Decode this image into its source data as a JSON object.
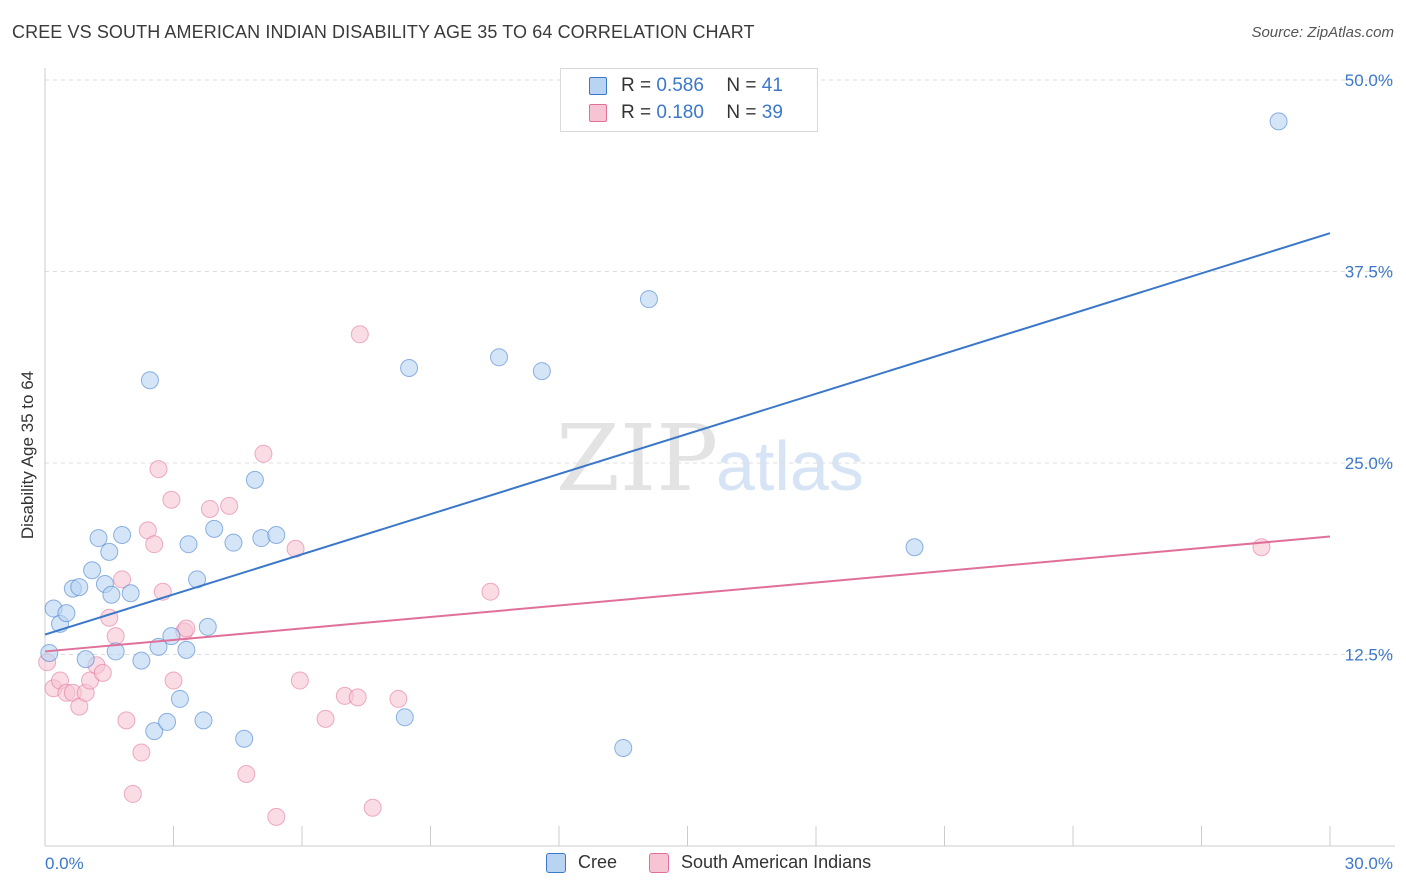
{
  "title": "CREE VS SOUTH AMERICAN INDIAN DISABILITY AGE 35 TO 64 CORRELATION CHART",
  "source": "Source: ZipAtlas.com",
  "watermark": {
    "zip": "ZIP",
    "atlas": "atlas"
  },
  "colors": {
    "blue": "#3b78c9",
    "blue_fill": "#b9d3f3",
    "pink": "#e0709a",
    "pink_fill": "#f7c4d4",
    "grid": "#dddddd"
  },
  "legend": {
    "rows": [
      {
        "r_label": "R =",
        "r_value": "0.586",
        "n_label": "N =",
        "n_value": "41"
      },
      {
        "r_label": "R =",
        "r_value": "0.180",
        "n_label": "N =",
        "n_value": "39"
      }
    ]
  },
  "bottom_legend": {
    "series1": "Cree",
    "series2": "South American Indians"
  },
  "chart_data": {
    "type": "scatter",
    "title": "CREE VS SOUTH AMERICAN INDIAN DISABILITY AGE 35 TO 64 CORRELATION CHART",
    "xlabel": "",
    "ylabel": "Disability Age 35 to 64",
    "xlim": [
      0,
      30
    ],
    "ylim": [
      0,
      50
    ],
    "x_tick_labels": [
      "0.0%",
      "30.0%"
    ],
    "y_ticks": [
      12.5,
      25.0,
      37.5,
      50.0
    ],
    "y_tick_labels": [
      "12.5%",
      "25.0%",
      "37.5%",
      "50.0%"
    ],
    "grid": true,
    "legend_position": "top-center",
    "series": [
      {
        "name": "Cree",
        "color": "#3b78c9",
        "r": 0.586,
        "n": 41,
        "trend": {
          "x": [
            0,
            30
          ],
          "y": [
            13.8,
            40.0
          ]
        },
        "points": [
          [
            0.1,
            12.6
          ],
          [
            0.2,
            15.5
          ],
          [
            0.35,
            14.5
          ],
          [
            0.5,
            15.2
          ],
          [
            0.65,
            16.8
          ],
          [
            0.8,
            16.9
          ],
          [
            0.95,
            12.2
          ],
          [
            1.1,
            18.0
          ],
          [
            1.25,
            20.1
          ],
          [
            1.4,
            17.1
          ],
          [
            1.5,
            19.2
          ],
          [
            1.55,
            16.4
          ],
          [
            1.65,
            12.7
          ],
          [
            1.8,
            20.3
          ],
          [
            2.0,
            16.5
          ],
          [
            2.25,
            12.1
          ],
          [
            2.45,
            30.4
          ],
          [
            2.55,
            7.5
          ],
          [
            2.65,
            13.0
          ],
          [
            2.85,
            8.1
          ],
          [
            2.95,
            13.7
          ],
          [
            3.15,
            9.6
          ],
          [
            3.3,
            12.8
          ],
          [
            3.35,
            19.7
          ],
          [
            3.55,
            17.4
          ],
          [
            3.7,
            8.2
          ],
          [
            3.8,
            14.3
          ],
          [
            3.95,
            20.7
          ],
          [
            4.4,
            19.8
          ],
          [
            4.65,
            7.0
          ],
          [
            4.9,
            23.9
          ],
          [
            5.05,
            20.1
          ],
          [
            5.4,
            20.3
          ],
          [
            8.4,
            8.4
          ],
          [
            8.5,
            31.2
          ],
          [
            10.6,
            31.9
          ],
          [
            11.6,
            31.0
          ],
          [
            13.5,
            6.4
          ],
          [
            14.1,
            35.7
          ],
          [
            20.3,
            19.5
          ],
          [
            28.8,
            47.3
          ]
        ]
      },
      {
        "name": "South American Indians",
        "color": "#e0709a",
        "r": 0.18,
        "n": 39,
        "trend": {
          "x": [
            0,
            30
          ],
          "y": [
            12.7,
            20.2
          ]
        },
        "points": [
          [
            0.05,
            12.0
          ],
          [
            0.2,
            10.3
          ],
          [
            0.35,
            10.8
          ],
          [
            0.5,
            10.0
          ],
          [
            0.65,
            10.0
          ],
          [
            0.8,
            9.1
          ],
          [
            0.95,
            10.0
          ],
          [
            1.05,
            10.8
          ],
          [
            1.2,
            11.8
          ],
          [
            1.35,
            11.3
          ],
          [
            1.5,
            14.9
          ],
          [
            1.65,
            13.7
          ],
          [
            1.8,
            17.4
          ],
          [
            1.9,
            8.2
          ],
          [
            2.05,
            3.4
          ],
          [
            2.25,
            6.1
          ],
          [
            2.4,
            20.6
          ],
          [
            2.55,
            19.7
          ],
          [
            2.65,
            24.6
          ],
          [
            2.75,
            16.6
          ],
          [
            2.95,
            22.6
          ],
          [
            3.0,
            10.8
          ],
          [
            3.25,
            14.0
          ],
          [
            3.3,
            14.2
          ],
          [
            3.85,
            22.0
          ],
          [
            4.3,
            22.2
          ],
          [
            4.7,
            4.7
          ],
          [
            5.1,
            25.6
          ],
          [
            5.4,
            1.9
          ],
          [
            5.85,
            19.4
          ],
          [
            5.95,
            10.8
          ],
          [
            6.55,
            8.3
          ],
          [
            7.0,
            9.8
          ],
          [
            7.3,
            9.7
          ],
          [
            7.35,
            33.4
          ],
          [
            7.65,
            2.5
          ],
          [
            8.25,
            9.6
          ],
          [
            10.4,
            16.6
          ],
          [
            28.4,
            19.5
          ]
        ]
      }
    ]
  }
}
